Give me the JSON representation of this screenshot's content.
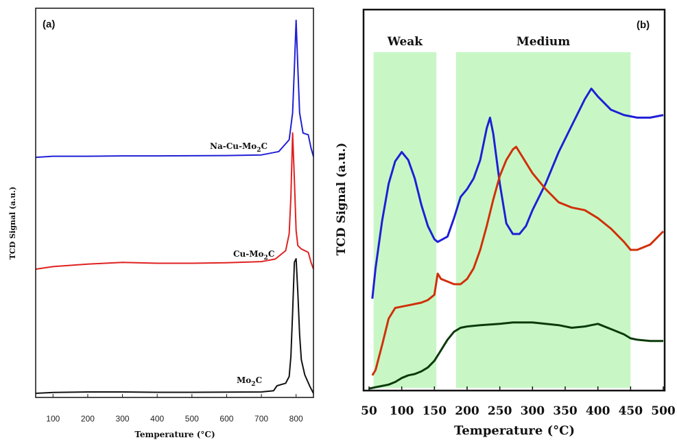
{
  "chart_data": [
    {
      "type": "line",
      "panel_label": "(a)",
      "xlabel": "Temperature (°C)",
      "ylabel": "TCD Signal (a.u.)",
      "xlim": [
        50,
        850
      ],
      "x_ticks": [
        100,
        200,
        300,
        400,
        500,
        600,
        700,
        800
      ],
      "y_ticks_shown": false,
      "grid": false,
      "series": [
        {
          "name": "Na-Cu-Mo2C",
          "label_main": "Na-Cu-Mo",
          "label_sub": "2",
          "label_tail": "C",
          "color": "#1f1fd6",
          "x": [
            50,
            100,
            200,
            300,
            400,
            500,
            600,
            700,
            750,
            780,
            790,
            795,
            800,
            805,
            810,
            820,
            835,
            843,
            850
          ],
          "y": [
            0.15,
            0.22,
            0.22,
            0.24,
            0.24,
            0.25,
            0.26,
            0.3,
            0.5,
            1.2,
            2.8,
            5.5,
            8.3,
            5.5,
            2.8,
            1.6,
            1.5,
            0.7,
            0.2
          ]
        },
        {
          "name": "Cu-Mo2C",
          "label_main": "Cu-Mo",
          "label_sub": "2",
          "label_tail": "C",
          "color": "#e02020",
          "x": [
            50,
            100,
            200,
            300,
            400,
            500,
            600,
            700,
            740,
            770,
            780,
            785,
            790,
            795,
            800,
            805,
            815,
            835,
            843,
            850
          ],
          "y": [
            0.2,
            0.35,
            0.5,
            0.6,
            0.55,
            0.55,
            0.58,
            0.65,
            0.8,
            1.3,
            2.3,
            4.5,
            8.3,
            5.5,
            2.5,
            1.6,
            1.4,
            1.2,
            0.6,
            0.2
          ]
        },
        {
          "name": "Mo2C",
          "label_main": "Mo",
          "label_sub": "2",
          "label_tail": "C",
          "color": "#111111",
          "x": [
            50,
            100,
            200,
            300,
            400,
            500,
            600,
            700,
            735,
            745,
            770,
            780,
            785,
            790,
            795,
            800,
            805,
            810,
            815,
            825,
            840,
            850
          ],
          "y": [
            0.0,
            0.05,
            0.08,
            0.08,
            0.06,
            0.06,
            0.07,
            0.08,
            0.15,
            0.45,
            0.6,
            1.0,
            2.2,
            4.8,
            7.8,
            8.0,
            6.0,
            3.5,
            2.0,
            1.1,
            0.4,
            0.0
          ]
        }
      ]
    },
    {
      "type": "line",
      "panel_label": "(b)",
      "xlabel": "Temperature (°C)",
      "ylabel": "TCD Signal (a.u.)",
      "xlim": [
        50,
        500
      ],
      "x_ticks": [
        50,
        100,
        150,
        200,
        250,
        300,
        350,
        400,
        450,
        500
      ],
      "y_ticks_shown": false,
      "grid": false,
      "regions": [
        {
          "label": "Weak",
          "x_start": 57,
          "x_end": 153,
          "color": "#c8f7c5"
        },
        {
          "label": "Medium",
          "x_start": 183,
          "x_end": 450,
          "color": "#c8f7c5"
        }
      ],
      "series": [
        {
          "name": "blue",
          "color": "#1f1fd6",
          "x": [
            55,
            60,
            70,
            80,
            90,
            100,
            110,
            120,
            130,
            140,
            150,
            155,
            170,
            180,
            190,
            200,
            210,
            220,
            230,
            235,
            240,
            250,
            260,
            270,
            280,
            290,
            300,
            320,
            340,
            360,
            380,
            390,
            400,
            420,
            440,
            460,
            480,
            500
          ],
          "y": [
            3.45,
            4.6,
            6.4,
            7.8,
            8.65,
            9.0,
            8.7,
            8.0,
            7.0,
            6.2,
            5.7,
            5.6,
            5.8,
            6.5,
            7.3,
            7.6,
            8.0,
            8.7,
            9.9,
            10.3,
            9.7,
            7.8,
            6.3,
            5.9,
            5.9,
            6.2,
            6.8,
            7.8,
            9.0,
            10.0,
            11.0,
            11.4,
            11.1,
            10.6,
            10.4,
            10.3,
            10.3,
            10.4
          ]
        },
        {
          "name": "red",
          "color": "#d0300a",
          "x": [
            55,
            60,
            70,
            80,
            90,
            100,
            110,
            120,
            130,
            140,
            150,
            155,
            160,
            170,
            180,
            190,
            200,
            210,
            220,
            230,
            240,
            250,
            260,
            270,
            275,
            280,
            290,
            300,
            320,
            340,
            360,
            380,
            400,
            420,
            440,
            450,
            460,
            480,
            500
          ],
          "y": [
            0.55,
            0.75,
            1.7,
            2.7,
            3.1,
            3.15,
            3.2,
            3.25,
            3.3,
            3.4,
            3.6,
            4.4,
            4.2,
            4.1,
            4.0,
            4.0,
            4.2,
            4.6,
            5.3,
            6.2,
            7.2,
            8.1,
            8.7,
            9.1,
            9.2,
            9.0,
            8.6,
            8.2,
            7.6,
            7.1,
            6.9,
            6.8,
            6.5,
            6.1,
            5.6,
            5.3,
            5.3,
            5.5,
            6.0
          ]
        },
        {
          "name": "green",
          "color": "#0a3a0a",
          "x": [
            50,
            60,
            80,
            90,
            100,
            110,
            120,
            130,
            140,
            150,
            160,
            170,
            180,
            190,
            200,
            220,
            250,
            270,
            290,
            300,
            320,
            340,
            360,
            380,
            390,
            400,
            420,
            440,
            450,
            460,
            480,
            500
          ],
          "y": [
            0.05,
            0.1,
            0.2,
            0.3,
            0.45,
            0.55,
            0.6,
            0.7,
            0.85,
            1.1,
            1.5,
            1.9,
            2.2,
            2.35,
            2.4,
            2.45,
            2.5,
            2.55,
            2.55,
            2.55,
            2.5,
            2.45,
            2.35,
            2.4,
            2.45,
            2.5,
            2.3,
            2.1,
            1.95,
            1.9,
            1.85,
            1.85
          ]
        }
      ]
    }
  ]
}
